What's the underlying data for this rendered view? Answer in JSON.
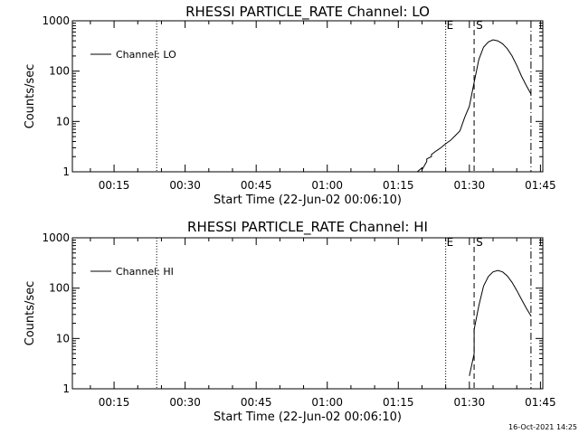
{
  "footer": {
    "timestamp": "16-Oct-2021 14:25"
  },
  "chart_data": [
    {
      "type": "line",
      "title": "RHESSI PARTICLE_RATE Channel: LO",
      "xlabel": "Start Time (22-Jun-02 00:06:10)",
      "ylabel": "Counts/sec",
      "yscale": "log",
      "ylim": [
        1,
        1000
      ],
      "xlim_minutes": [
        6.2,
        105.5
      ],
      "x_ticks": [
        "00:15",
        "00:30",
        "00:45",
        "01:00",
        "01:15",
        "01:30",
        "01:45"
      ],
      "y_ticks": [
        "1",
        "10",
        "100",
        "1000"
      ],
      "legend": "Channel: LO",
      "legend_position": "top-left",
      "markers": [
        {
          "label": "",
          "time": "00:24",
          "style": "dotted"
        },
        {
          "label": "E",
          "time": "01:25",
          "style": "dotted"
        },
        {
          "label": "S",
          "time": "01:31",
          "style": "dashed"
        },
        {
          "label": "",
          "time": "01:43",
          "style": "dashdot"
        }
      ],
      "series": [
        {
          "x": [
            "01:18",
            "01:18",
            "01:19",
            "01:20",
            "01:20",
            "01:21",
            "01:21",
            "01:22",
            "01:22",
            "01:23",
            "01:24",
            "01:25",
            "01:26",
            "01:27",
            "01:28",
            "01:29",
            "01:30",
            "01:31",
            "01:32",
            "01:33",
            "01:34",
            "01:35",
            "01:36",
            "01:37",
            "01:38",
            "01:39",
            "01:40",
            "01:41",
            "01:42",
            "01:43"
          ],
          "values": [
            0.5,
            1.0,
            1.0,
            1.2,
            1.1,
            1.6,
            1.8,
            2.0,
            2.2,
            2.6,
            3.0,
            3.6,
            4.2,
            5.2,
            6.5,
            12,
            20,
            60,
            170,
            300,
            380,
            420,
            400,
            350,
            280,
            200,
            130,
            80,
            52,
            35
          ]
        }
      ]
    },
    {
      "type": "line",
      "title": "RHESSI PARTICLE_RATE Channel: HI",
      "xlabel": "Start Time (22-Jun-02 00:06:10)",
      "ylabel": "Counts/sec",
      "yscale": "log",
      "ylim": [
        1,
        1000
      ],
      "xlim_minutes": [
        6.2,
        105.5
      ],
      "x_ticks": [
        "00:15",
        "00:30",
        "00:45",
        "01:00",
        "01:15",
        "01:30",
        "01:45"
      ],
      "y_ticks": [
        "1",
        "10",
        "100",
        "1000"
      ],
      "legend": "Channel: HI",
      "legend_position": "top-left",
      "markers": [
        {
          "label": "",
          "time": "00:24",
          "style": "dotted"
        },
        {
          "label": "E",
          "time": "01:25",
          "style": "dotted"
        },
        {
          "label": "S",
          "time": "01:31",
          "style": "dashed"
        },
        {
          "label": "",
          "time": "01:43",
          "style": "dashdot"
        }
      ],
      "series": [
        {
          "x": [
            "01:30",
            "01:31",
            "01:31",
            "01:32",
            "01:33",
            "01:34",
            "01:35",
            "01:36",
            "01:37",
            "01:38",
            "01:39",
            "01:40",
            "01:41",
            "01:42",
            "01:43"
          ],
          "values": [
            1.8,
            5,
            15,
            45,
            110,
            170,
            210,
            225,
            210,
            175,
            130,
            90,
            60,
            40,
            28
          ]
        }
      ]
    }
  ]
}
